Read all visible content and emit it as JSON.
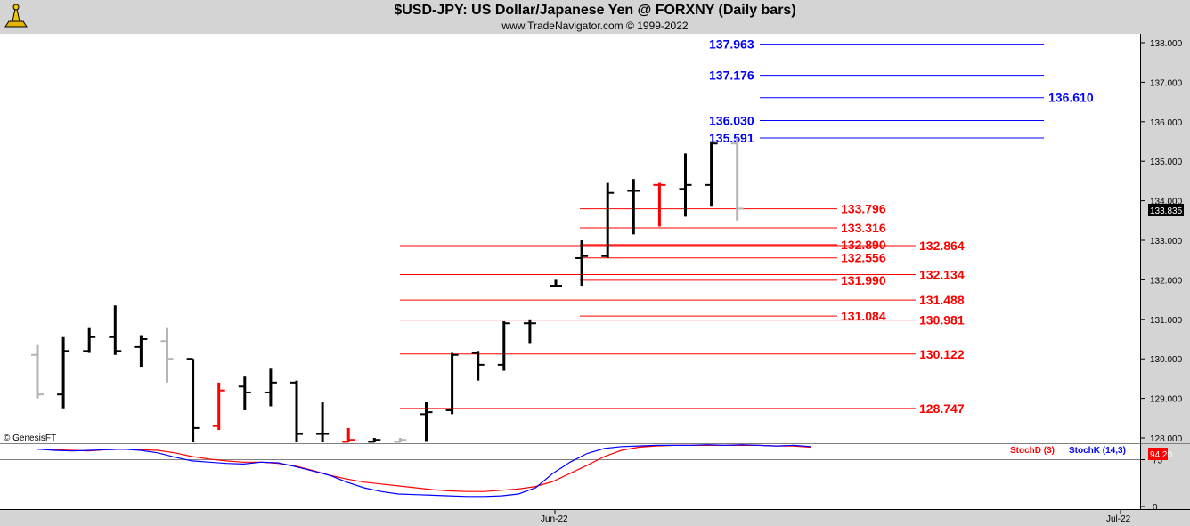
{
  "header": {
    "title": "$USD-JPY:  US Dollar/Japanese Yen @ FORXNY  (Daily bars)",
    "subtitle": "www.TradeNavigator.com © 1999-2022"
  },
  "watermark": "© GenesisFT",
  "colors": {
    "up_bar": "#000000",
    "down_bar": "#ff0000",
    "unconfirmed_bar": "#b4b4b4",
    "resistance": "#0000ff",
    "support": "#ff0000",
    "stoch_d": "#ff0000",
    "stoch_k": "#0000ff",
    "price_tag_bg": "#000000",
    "stoch_tag_bg": "#ff0000"
  },
  "chart_data": [
    {
      "type": "ohlc",
      "title": "$USD-JPY:  US Dollar/Japanese Yen @ FORXNY  (Daily bars)",
      "y_ticks": [
        "128.000",
        "129.000",
        "130.000",
        "131.000",
        "132.000",
        "133.000",
        "134.000",
        "135.000",
        "136.000",
        "137.000",
        "138.000"
      ],
      "ylim": [
        127.9,
        138.2
      ],
      "x_ticks": [
        "Jun-22",
        "Jul-22"
      ],
      "last_price": "133.835",
      "bars": [
        {
          "o": 130.1,
          "h": 130.35,
          "l": 129.0,
          "c": 129.1,
          "color": "gray"
        },
        {
          "o": 129.1,
          "h": 130.55,
          "l": 128.75,
          "c": 130.2,
          "color": "black"
        },
        {
          "o": 130.2,
          "h": 130.8,
          "l": 130.15,
          "c": 130.55,
          "color": "black"
        },
        {
          "o": 130.55,
          "h": 131.35,
          "l": 130.1,
          "c": 130.2,
          "color": "black"
        },
        {
          "o": 130.3,
          "h": 130.6,
          "l": 129.8,
          "c": 130.5,
          "color": "black"
        },
        {
          "o": 130.45,
          "h": 130.8,
          "l": 129.4,
          "c": 130.0,
          "color": "gray"
        },
        {
          "o": 130.0,
          "h": 130.0,
          "l": 127.5,
          "c": 128.25,
          "color": "black"
        },
        {
          "o": 128.3,
          "h": 129.4,
          "l": 128.2,
          "c": 129.2,
          "color": "red"
        },
        {
          "o": 129.3,
          "h": 129.55,
          "l": 128.7,
          "c": 129.15,
          "color": "black"
        },
        {
          "o": 129.15,
          "h": 129.75,
          "l": 128.8,
          "c": 129.4,
          "color": "black"
        },
        {
          "o": 129.4,
          "h": 129.45,
          "l": 127.8,
          "c": 128.1,
          "color": "black"
        },
        {
          "o": 128.1,
          "h": 128.9,
          "l": 127.3,
          "c": 128.1,
          "color": "black"
        },
        {
          "o": 127.9,
          "h": 128.25,
          "l": 127.4,
          "c": 127.95,
          "color": "red"
        },
        {
          "o": 127.9,
          "h": 128.0,
          "l": 127.3,
          "c": 127.95,
          "color": "black"
        },
        {
          "o": 127.9,
          "h": 128.0,
          "l": 127.3,
          "c": 127.95,
          "color": "gray"
        },
        {
          "o": 128.6,
          "h": 128.9,
          "l": 127.9,
          "c": 128.65,
          "color": "black"
        },
        {
          "o": 128.7,
          "h": 130.15,
          "l": 128.6,
          "c": 130.1,
          "color": "black"
        },
        {
          "o": 130.15,
          "h": 130.2,
          "l": 129.45,
          "c": 129.85,
          "color": "black"
        },
        {
          "o": 129.85,
          "h": 130.95,
          "l": 129.7,
          "c": 130.9,
          "color": "black"
        },
        {
          "o": 130.9,
          "h": 131.0,
          "l": 130.4,
          "c": 130.9,
          "color": "black"
        },
        {
          "o": 131.85,
          "h": 132.0,
          "l": 131.85,
          "c": 131.85,
          "color": "black"
        },
        {
          "o": 132.55,
          "h": 133.0,
          "l": 131.85,
          "c": 132.6,
          "color": "black"
        },
        {
          "o": 132.6,
          "h": 134.45,
          "l": 132.55,
          "c": 134.2,
          "color": "black"
        },
        {
          "o": 134.25,
          "h": 134.55,
          "l": 133.15,
          "c": 134.25,
          "color": "black"
        },
        {
          "o": 134.4,
          "h": 134.45,
          "l": 133.35,
          "c": 134.4,
          "color": "red"
        },
        {
          "o": 134.3,
          "h": 135.2,
          "l": 133.6,
          "c": 134.4,
          "color": "black"
        },
        {
          "o": 134.4,
          "h": 135.5,
          "l": 133.85,
          "c": 135.45,
          "color": "black"
        },
        {
          "o": 135.45,
          "h": 135.6,
          "l": 133.5,
          "c": 133.8,
          "color": "gray"
        }
      ],
      "resistance_levels": [
        {
          "value": 137.963,
          "label": "137.963"
        },
        {
          "value": 137.176,
          "label": "137.176"
        },
        {
          "value": 136.61,
          "label": "136.610"
        },
        {
          "value": 136.03,
          "label": "136.030"
        },
        {
          "value": 135.591,
          "label": "135.591"
        }
      ],
      "support_levels": [
        {
          "value": 133.796,
          "label": "133.796"
        },
        {
          "value": 133.316,
          "label": "133.316"
        },
        {
          "value": 132.89,
          "label": "132.890"
        },
        {
          "value": 132.864,
          "label": "132.864"
        },
        {
          "value": 132.556,
          "label": "132.556"
        },
        {
          "value": 132.134,
          "label": "132.134"
        },
        {
          "value": 131.99,
          "label": "131.990"
        },
        {
          "value": 131.488,
          "label": "131.488"
        },
        {
          "value": 131.084,
          "label": "131.084"
        },
        {
          "value": 130.981,
          "label": "130.981"
        },
        {
          "value": 130.122,
          "label": "130.122"
        },
        {
          "value": 128.747,
          "label": "128.747"
        }
      ]
    },
    {
      "type": "line",
      "y_ticks": [
        "0",
        "75"
      ],
      "ylim": [
        0,
        100
      ],
      "last_value": "94.20",
      "series": [
        {
          "name": "StochD (3)",
          "color": "#ff0000",
          "values": [
            92,
            91,
            90,
            89,
            91,
            92,
            91,
            90,
            86,
            80,
            76,
            73,
            71,
            71,
            69,
            65,
            58,
            50,
            44,
            39,
            36,
            33,
            30,
            27,
            25,
            24,
            24,
            26,
            28,
            32,
            40,
            53,
            66,
            80,
            90,
            95,
            97,
            98,
            98,
            98,
            98,
            98,
            98,
            97,
            97,
            95
          ]
        },
        {
          "name": "StochK (14,3)",
          "color": "#0000ff",
          "values": [
            92,
            90,
            89,
            90,
            91,
            92,
            90,
            86,
            79,
            73,
            71,
            69,
            68,
            71,
            70,
            64,
            57,
            50,
            39,
            30,
            24,
            20,
            19,
            18,
            17,
            16,
            16,
            17,
            20,
            30,
            53,
            71,
            85,
            93,
            96,
            97,
            98,
            98,
            98,
            99,
            98,
            99,
            98,
            97,
            98,
            96
          ]
        }
      ]
    }
  ]
}
